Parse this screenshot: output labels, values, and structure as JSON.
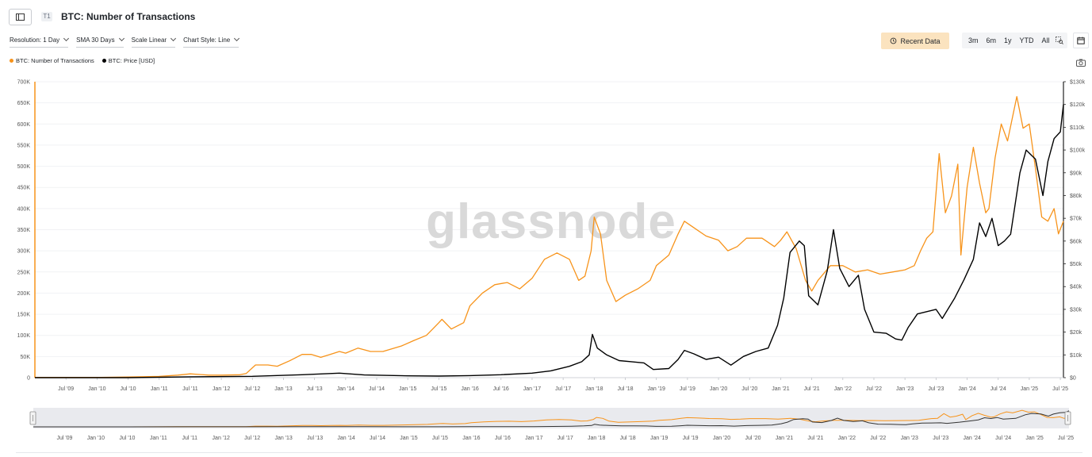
{
  "header": {
    "title": "BTC: Number of Transactions",
    "tier": "T1"
  },
  "controls": [
    {
      "label": "Resolution: 1 Day"
    },
    {
      "label": "SMA 30 Days"
    },
    {
      "label": "Scale Linear"
    },
    {
      "label": "Chart Style: Line"
    }
  ],
  "toolbar": {
    "recent_label": "Recent Data",
    "ranges": [
      "3m",
      "6m",
      "1y",
      "YTD",
      "All"
    ]
  },
  "watermark": "glassnode",
  "colors": {
    "transactions": "#f7931a",
    "price": "#000000",
    "recent_bg": "#fbe3bf",
    "grid": "#f1f2f4"
  },
  "icons": {
    "sidebar": "sidebar-toggle-icon",
    "recent": "history-icon",
    "zoom": "zoom-select-icon",
    "calendar": "calendar-icon",
    "camera": "camera-icon"
  },
  "chart_data": {
    "type": "line",
    "legend_position": "top-left",
    "grid": true,
    "x_ticks": [
      "Jul '09",
      "Jan '10",
      "Jul '10",
      "Jan '11",
      "Jul '11",
      "Jan '12",
      "Jul '12",
      "Jan '13",
      "Jul '13",
      "Jan '14",
      "Jul '14",
      "Jan '15",
      "Jul '15",
      "Jan '16",
      "Jul '16",
      "Jan '17",
      "Jul '17",
      "Jan '18",
      "Jul '18",
      "Jan '19",
      "Jul '19",
      "Jan '20",
      "Jul '20",
      "Jan '21",
      "Jul '21",
      "Jan '22",
      "Jul '22",
      "Jan '23",
      "Jul '23",
      "Jan '24",
      "Jul '24",
      "Jan '25",
      "Jul '25"
    ],
    "x_tick_values": [
      2009.5,
      2010.0,
      2010.5,
      2011.0,
      2011.5,
      2012.0,
      2012.5,
      2013.0,
      2013.5,
      2014.0,
      2014.5,
      2015.0,
      2015.5,
      2016.0,
      2016.5,
      2017.0,
      2017.5,
      2018.0,
      2018.5,
      2019.0,
      2019.5,
      2020.0,
      2020.5,
      2021.0,
      2021.5,
      2022.0,
      2022.5,
      2023.0,
      2023.5,
      2024.0,
      2024.5,
      2025.0,
      2025.5
    ],
    "xlim": [
      2009.0,
      2025.55
    ],
    "y_left": {
      "ticks": [
        "0",
        "50K",
        "100K",
        "150K",
        "200K",
        "250K",
        "300K",
        "350K",
        "400K",
        "450K",
        "500K",
        "550K",
        "600K",
        "650K",
        "700K"
      ],
      "ylim": [
        0,
        700000
      ]
    },
    "y_right": {
      "ticks": [
        "$0",
        "$10k",
        "$20k",
        "$30k",
        "$40k",
        "$50k",
        "$60k",
        "$70k",
        "$80k",
        "$90k",
        "$100k",
        "$110k",
        "$120k",
        "$130k"
      ],
      "ylim": [
        0,
        130000
      ]
    },
    "series": [
      {
        "name": "BTC: Number of Transactions",
        "axis": "left",
        "color": "#f7931a",
        "points": [
          [
            2009.0,
            800
          ],
          [
            2010.0,
            500
          ],
          [
            2010.5,
            1500
          ],
          [
            2011.0,
            3000
          ],
          [
            2011.3,
            6000
          ],
          [
            2011.5,
            9000
          ],
          [
            2011.8,
            6000
          ],
          [
            2012.0,
            6000
          ],
          [
            2012.3,
            7000
          ],
          [
            2012.4,
            10000
          ],
          [
            2012.55,
            30000
          ],
          [
            2012.75,
            30000
          ],
          [
            2012.9,
            27000
          ],
          [
            2013.1,
            40000
          ],
          [
            2013.3,
            55000
          ],
          [
            2013.45,
            55000
          ],
          [
            2013.6,
            48000
          ],
          [
            2013.75,
            55000
          ],
          [
            2013.9,
            62000
          ],
          [
            2014.0,
            58000
          ],
          [
            2014.2,
            70000
          ],
          [
            2014.4,
            62000
          ],
          [
            2014.6,
            62000
          ],
          [
            2014.9,
            75000
          ],
          [
            2015.1,
            88000
          ],
          [
            2015.3,
            100000
          ],
          [
            2015.4,
            115000
          ],
          [
            2015.5,
            130000
          ],
          [
            2015.55,
            138000
          ],
          [
            2015.7,
            115000
          ],
          [
            2015.9,
            130000
          ],
          [
            2016.0,
            170000
          ],
          [
            2016.2,
            200000
          ],
          [
            2016.4,
            220000
          ],
          [
            2016.6,
            225000
          ],
          [
            2016.8,
            210000
          ],
          [
            2017.0,
            235000
          ],
          [
            2017.2,
            280000
          ],
          [
            2017.4,
            295000
          ],
          [
            2017.6,
            280000
          ],
          [
            2017.75,
            230000
          ],
          [
            2017.85,
            240000
          ],
          [
            2017.95,
            300000
          ],
          [
            2018.0,
            380000
          ],
          [
            2018.1,
            340000
          ],
          [
            2018.2,
            230000
          ],
          [
            2018.35,
            180000
          ],
          [
            2018.5,
            195000
          ],
          [
            2018.7,
            210000
          ],
          [
            2018.9,
            230000
          ],
          [
            2019.0,
            265000
          ],
          [
            2019.2,
            290000
          ],
          [
            2019.35,
            340000
          ],
          [
            2019.45,
            370000
          ],
          [
            2019.6,
            355000
          ],
          [
            2019.8,
            335000
          ],
          [
            2020.0,
            325000
          ],
          [
            2020.15,
            300000
          ],
          [
            2020.3,
            310000
          ],
          [
            2020.45,
            330000
          ],
          [
            2020.7,
            330000
          ],
          [
            2020.9,
            310000
          ],
          [
            2021.0,
            325000
          ],
          [
            2021.1,
            345000
          ],
          [
            2021.25,
            305000
          ],
          [
            2021.4,
            230000
          ],
          [
            2021.5,
            205000
          ],
          [
            2021.6,
            230000
          ],
          [
            2021.8,
            265000
          ],
          [
            2022.0,
            265000
          ],
          [
            2022.2,
            250000
          ],
          [
            2022.4,
            255000
          ],
          [
            2022.6,
            245000
          ],
          [
            2022.8,
            250000
          ],
          [
            2023.0,
            255000
          ],
          [
            2023.15,
            265000
          ],
          [
            2023.25,
            300000
          ],
          [
            2023.35,
            330000
          ],
          [
            2023.45,
            345000
          ],
          [
            2023.55,
            530000
          ],
          [
            2023.65,
            390000
          ],
          [
            2023.75,
            430000
          ],
          [
            2023.85,
            505000
          ],
          [
            2023.9,
            290000
          ],
          [
            2024.0,
            450000
          ],
          [
            2024.1,
            545000
          ],
          [
            2024.2,
            460000
          ],
          [
            2024.3,
            390000
          ],
          [
            2024.35,
            400000
          ],
          [
            2024.45,
            520000
          ],
          [
            2024.55,
            600000
          ],
          [
            2024.65,
            560000
          ],
          [
            2024.8,
            665000
          ],
          [
            2024.9,
            590000
          ],
          [
            2025.0,
            600000
          ],
          [
            2025.1,
            495000
          ],
          [
            2025.2,
            380000
          ],
          [
            2025.3,
            370000
          ],
          [
            2025.4,
            400000
          ],
          [
            2025.47,
            340000
          ],
          [
            2025.55,
            370000
          ]
        ]
      },
      {
        "name": "BTC: Price [USD]",
        "axis": "right",
        "color": "#000000",
        "points": [
          [
            2009.0,
            0
          ],
          [
            2010.5,
            0
          ],
          [
            2011.5,
            400
          ],
          [
            2012.5,
            600
          ],
          [
            2013.3,
            1300
          ],
          [
            2013.9,
            2000
          ],
          [
            2014.3,
            1200
          ],
          [
            2015.0,
            800
          ],
          [
            2015.5,
            700
          ],
          [
            2016.0,
            900
          ],
          [
            2016.5,
            1300
          ],
          [
            2017.0,
            2000
          ],
          [
            2017.3,
            3000
          ],
          [
            2017.6,
            5000
          ],
          [
            2017.8,
            7000
          ],
          [
            2017.92,
            10000
          ],
          [
            2017.97,
            19000
          ],
          [
            2018.05,
            13000
          ],
          [
            2018.2,
            10000
          ],
          [
            2018.4,
            7500
          ],
          [
            2018.6,
            7000
          ],
          [
            2018.8,
            6500
          ],
          [
            2018.95,
            3600
          ],
          [
            2019.2,
            4000
          ],
          [
            2019.35,
            8000
          ],
          [
            2019.45,
            12000
          ],
          [
            2019.6,
            10500
          ],
          [
            2019.8,
            8000
          ],
          [
            2020.0,
            9000
          ],
          [
            2020.2,
            5500
          ],
          [
            2020.4,
            9300
          ],
          [
            2020.6,
            11500
          ],
          [
            2020.8,
            13000
          ],
          [
            2020.95,
            23000
          ],
          [
            2021.05,
            35000
          ],
          [
            2021.15,
            55000
          ],
          [
            2021.3,
            60000
          ],
          [
            2021.38,
            58000
          ],
          [
            2021.45,
            36000
          ],
          [
            2021.6,
            32000
          ],
          [
            2021.75,
            47000
          ],
          [
            2021.85,
            65000
          ],
          [
            2021.95,
            48000
          ],
          [
            2022.1,
            40000
          ],
          [
            2022.25,
            45000
          ],
          [
            2022.35,
            30000
          ],
          [
            2022.5,
            20000
          ],
          [
            2022.7,
            19500
          ],
          [
            2022.85,
            17000
          ],
          [
            2022.95,
            16500
          ],
          [
            2023.05,
            22000
          ],
          [
            2023.2,
            28000
          ],
          [
            2023.35,
            29000
          ],
          [
            2023.5,
            30000
          ],
          [
            2023.6,
            26000
          ],
          [
            2023.8,
            35000
          ],
          [
            2023.95,
            43000
          ],
          [
            2024.1,
            52000
          ],
          [
            2024.2,
            68000
          ],
          [
            2024.3,
            62000
          ],
          [
            2024.4,
            70000
          ],
          [
            2024.5,
            58000
          ],
          [
            2024.6,
            60000
          ],
          [
            2024.7,
            63000
          ],
          [
            2024.85,
            90000
          ],
          [
            2024.95,
            100000
          ],
          [
            2025.1,
            96000
          ],
          [
            2025.22,
            80000
          ],
          [
            2025.3,
            95000
          ],
          [
            2025.4,
            105000
          ],
          [
            2025.5,
            108000
          ],
          [
            2025.55,
            120000
          ]
        ]
      }
    ]
  }
}
